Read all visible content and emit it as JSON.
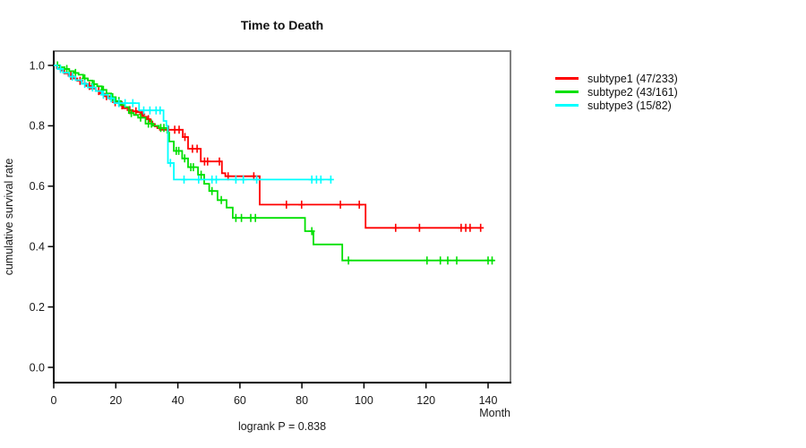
{
  "chart_data": {
    "type": "line",
    "subtype": "kaplan-meier-step",
    "title": "Time to Death",
    "annotation": "logrank P = 0.838",
    "axes": {
      "x": {
        "label": "Month",
        "ticks": [
          0,
          20,
          40,
          60,
          80,
          100,
          120,
          140
        ],
        "min": 0,
        "max": 147
      },
      "y": {
        "label": "cumulative survival rate",
        "ticks": [
          0,
          0.2,
          0.4,
          0.6,
          0.8,
          1
        ],
        "min": 0,
        "max": 1.05
      }
    },
    "legend_position": "right-of-plot",
    "series": [
      {
        "name": "subtype1",
        "label": "subtype1 (47/233)",
        "events": 47,
        "n": 233,
        "color": "#FF0000",
        "end_month": 137.7,
        "steps": [
          [
            0,
            1.0
          ],
          [
            1,
            0.991
          ],
          [
            2.2,
            0.983
          ],
          [
            3.4,
            0.974
          ],
          [
            4.8,
            0.966
          ],
          [
            6.2,
            0.957
          ],
          [
            7.6,
            0.949
          ],
          [
            9,
            0.94
          ],
          [
            10.5,
            0.932
          ],
          [
            12,
            0.923
          ],
          [
            13.5,
            0.915
          ],
          [
            15,
            0.906
          ],
          [
            16.5,
            0.898
          ],
          [
            18,
            0.889
          ],
          [
            19.5,
            0.878
          ],
          [
            21,
            0.868
          ],
          [
            22.5,
            0.858
          ],
          [
            24,
            0.852
          ],
          [
            25.5,
            0.848
          ],
          [
            27,
            0.845
          ],
          [
            28,
            0.838
          ],
          [
            29,
            0.83
          ],
          [
            30,
            0.822
          ],
          [
            31,
            0.814
          ],
          [
            31.8,
            0.806
          ],
          [
            32.6,
            0.798
          ],
          [
            33.4,
            0.792
          ],
          [
            34.2,
            0.787
          ],
          [
            41.6,
            0.763
          ],
          [
            43.3,
            0.724
          ],
          [
            47.4,
            0.682
          ],
          [
            54.2,
            0.643
          ],
          [
            55.3,
            0.633
          ],
          [
            66.4,
            0.539
          ],
          [
            100.5,
            0.462
          ]
        ],
        "censor_months": [
          5.5,
          8.5,
          11.5,
          14.5,
          17,
          19.8,
          22,
          24.5,
          26.5,
          28.5,
          30.5,
          37,
          39,
          40.4,
          42.3,
          44.7,
          46.2,
          48.6,
          49.6,
          53.4,
          56.2,
          64.5,
          75,
          79.9,
          92.4,
          98.5,
          110.2,
          117.9,
          131.3,
          132.8,
          134.2,
          137.6
        ]
      },
      {
        "name": "subtype2",
        "label": "subtype2 (43/161)",
        "events": 43,
        "n": 161,
        "color": "#00E000",
        "end_month": 141.9,
        "steps": [
          [
            0,
            1.0
          ],
          [
            2,
            0.994
          ],
          [
            3.5,
            0.988
          ],
          [
            5,
            0.981
          ],
          [
            6.5,
            0.975
          ],
          [
            8,
            0.969
          ],
          [
            9.5,
            0.957
          ],
          [
            11,
            0.95
          ],
          [
            12.5,
            0.938
          ],
          [
            14,
            0.931
          ],
          [
            15.5,
            0.919
          ],
          [
            17,
            0.907
          ],
          [
            18.5,
            0.895
          ],
          [
            20,
            0.882
          ],
          [
            21.5,
            0.869
          ],
          [
            23,
            0.862
          ],
          [
            24.2,
            0.842
          ],
          [
            25.8,
            0.836
          ],
          [
            27.2,
            0.827
          ],
          [
            29.6,
            0.807
          ],
          [
            32,
            0.8
          ],
          [
            33.9,
            0.793
          ],
          [
            36.6,
            0.777
          ],
          [
            37.2,
            0.748
          ],
          [
            38.7,
            0.717
          ],
          [
            41.4,
            0.692
          ],
          [
            43.3,
            0.663
          ],
          [
            46.5,
            0.638
          ],
          [
            48.5,
            0.608
          ],
          [
            50.1,
            0.584
          ],
          [
            52.8,
            0.554
          ],
          [
            55.7,
            0.529
          ],
          [
            57.7,
            0.495
          ],
          [
            81,
            0.451
          ],
          [
            83.7,
            0.407
          ],
          [
            93,
            0.354
          ]
        ],
        "censor_months": [
          1.2,
          4.2,
          7,
          10,
          13,
          16,
          19,
          21,
          25,
          28,
          30.5,
          31.5,
          34.5,
          35.5,
          39.5,
          40.3,
          42.2,
          44.2,
          45,
          47.5,
          51,
          54,
          58.7,
          60.5,
          63.5,
          65,
          83.2,
          95,
          120.3,
          124.6,
          127,
          129.9,
          140,
          141.3
        ]
      },
      {
        "name": "subtype3",
        "label": "subtype3 (15/82)",
        "events": 15,
        "n": 82,
        "color": "#00FFFF",
        "end_month": 89.5,
        "steps": [
          [
            0,
            1.0
          ],
          [
            1.2,
            0.988
          ],
          [
            3,
            0.976
          ],
          [
            5,
            0.963
          ],
          [
            7,
            0.951
          ],
          [
            9,
            0.939
          ],
          [
            11,
            0.927
          ],
          [
            13.5,
            0.915
          ],
          [
            15.5,
            0.903
          ],
          [
            17.5,
            0.891
          ],
          [
            19.5,
            0.875
          ],
          [
            27.5,
            0.851
          ],
          [
            35.4,
            0.816
          ],
          [
            36.3,
            0.8
          ],
          [
            36.8,
            0.677
          ],
          [
            38.7,
            0.622
          ]
        ],
        "censor_months": [
          2.2,
          6,
          10,
          12.5,
          16,
          18.5,
          21,
          23,
          25.5,
          29,
          31,
          33,
          34.3,
          37.6,
          42,
          46.7,
          51,
          52.4,
          58.7,
          61.1,
          65.4,
          83.2,
          84.7,
          86.1,
          89.3
        ]
      }
    ]
  },
  "colors": {
    "background": "#FFFFFF",
    "spine_left_bottom": "#000000",
    "spine_top_right": "#808080",
    "text": "#1a1a1a"
  }
}
